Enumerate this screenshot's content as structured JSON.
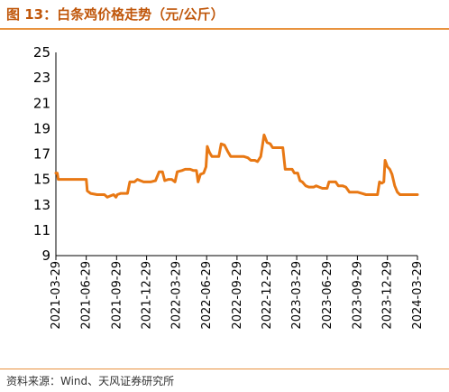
{
  "header": {
    "title": "图 13：白条鸡价格走势（元/公斤）"
  },
  "footer": {
    "source": "资料来源：Wind、天风证券研究所"
  },
  "colors": {
    "accent": "#e8923e",
    "title": "#c0570b",
    "line": "#e87814"
  },
  "chart_data": {
    "type": "line",
    "title": "图 13：白条鸡价格走势（元/公斤）",
    "xlabel": "",
    "ylabel": "",
    "ylim": [
      9,
      25
    ],
    "y_ticks": [
      9,
      11,
      13,
      15,
      17,
      19,
      21,
      23,
      25
    ],
    "x_range": [
      "2021-03-29",
      "2024-03-29"
    ],
    "x_ticks": [
      "2021-03-29",
      "2021-06-29",
      "2021-09-29",
      "2021-12-29",
      "2022-03-29",
      "2022-06-29",
      "2022-09-29",
      "2022-12-29",
      "2023-03-29",
      "2023-06-29",
      "2023-09-29",
      "2023-12-29",
      "2024-03-29"
    ],
    "grid": false,
    "legend": "none",
    "series": [
      {
        "color": "#e87814",
        "points": [
          [
            "2021-03-29",
            15.5
          ],
          [
            "2021-04-02",
            15.5
          ],
          [
            "2021-04-05",
            15.0
          ],
          [
            "2021-04-20",
            15.0
          ],
          [
            "2021-05-10",
            15.0
          ],
          [
            "2021-06-01",
            15.0
          ],
          [
            "2021-06-29",
            15.0
          ],
          [
            "2021-07-02",
            14.1
          ],
          [
            "2021-07-12",
            13.9
          ],
          [
            "2021-08-01",
            13.8
          ],
          [
            "2021-08-23",
            13.8
          ],
          [
            "2021-09-01",
            13.6
          ],
          [
            "2021-09-10",
            13.7
          ],
          [
            "2021-09-20",
            13.8
          ],
          [
            "2021-09-27",
            13.6
          ],
          [
            "2021-10-01",
            13.8
          ],
          [
            "2021-10-12",
            13.9
          ],
          [
            "2021-11-01",
            13.9
          ],
          [
            "2021-11-08",
            14.8
          ],
          [
            "2021-11-22",
            14.8
          ],
          [
            "2021-12-01",
            15.0
          ],
          [
            "2021-12-10",
            14.9
          ],
          [
            "2021-12-20",
            14.8
          ],
          [
            "2022-01-10",
            14.8
          ],
          [
            "2022-01-25",
            14.9
          ],
          [
            "2022-02-05",
            15.6
          ],
          [
            "2022-02-15",
            15.6
          ],
          [
            "2022-02-22",
            14.9
          ],
          [
            "2022-03-05",
            15.0
          ],
          [
            "2022-03-15",
            15.0
          ],
          [
            "2022-03-25",
            14.8
          ],
          [
            "2022-04-01",
            15.6
          ],
          [
            "2022-04-15",
            15.7
          ],
          [
            "2022-04-25",
            15.8
          ],
          [
            "2022-05-10",
            15.8
          ],
          [
            "2022-05-20",
            15.7
          ],
          [
            "2022-05-29",
            15.7
          ],
          [
            "2022-06-03",
            14.8
          ],
          [
            "2022-06-10",
            15.4
          ],
          [
            "2022-06-20",
            15.5
          ],
          [
            "2022-06-27",
            16.0
          ],
          [
            "2022-07-01",
            17.6
          ],
          [
            "2022-07-08",
            17.1
          ],
          [
            "2022-07-15",
            16.8
          ],
          [
            "2022-07-25",
            16.8
          ],
          [
            "2022-08-05",
            16.8
          ],
          [
            "2022-08-12",
            17.8
          ],
          [
            "2022-08-22",
            17.7
          ],
          [
            "2022-09-01",
            17.2
          ],
          [
            "2022-09-10",
            16.8
          ],
          [
            "2022-09-29",
            16.8
          ],
          [
            "2022-10-20",
            16.8
          ],
          [
            "2022-11-01",
            16.7
          ],
          [
            "2022-11-10",
            16.5
          ],
          [
            "2022-11-22",
            16.5
          ],
          [
            "2022-11-30",
            16.4
          ],
          [
            "2022-12-10",
            16.8
          ],
          [
            "2022-12-20",
            18.5
          ],
          [
            "2022-12-29",
            17.9
          ],
          [
            "2023-01-08",
            17.8
          ],
          [
            "2023-01-15",
            17.5
          ],
          [
            "2023-01-25",
            17.5
          ],
          [
            "2023-02-05",
            17.5
          ],
          [
            "2023-02-15",
            17.5
          ],
          [
            "2023-02-22",
            15.8
          ],
          [
            "2023-03-05",
            15.8
          ],
          [
            "2023-03-15",
            15.8
          ],
          [
            "2023-03-22",
            15.5
          ],
          [
            "2023-04-01",
            15.5
          ],
          [
            "2023-04-08",
            14.9
          ],
          [
            "2023-04-15",
            14.8
          ],
          [
            "2023-04-25",
            14.5
          ],
          [
            "2023-05-05",
            14.4
          ],
          [
            "2023-05-20",
            14.4
          ],
          [
            "2023-05-27",
            14.5
          ],
          [
            "2023-06-05",
            14.4
          ],
          [
            "2023-06-15",
            14.3
          ],
          [
            "2023-06-29",
            14.3
          ],
          [
            "2023-07-05",
            14.8
          ],
          [
            "2023-07-15",
            14.8
          ],
          [
            "2023-07-25",
            14.8
          ],
          [
            "2023-08-02",
            14.5
          ],
          [
            "2023-08-15",
            14.5
          ],
          [
            "2023-08-25",
            14.4
          ],
          [
            "2023-09-05",
            14.0
          ],
          [
            "2023-09-15",
            14.0
          ],
          [
            "2023-09-29",
            14.0
          ],
          [
            "2023-10-12",
            13.9
          ],
          [
            "2023-10-25",
            13.8
          ],
          [
            "2023-11-15",
            13.8
          ],
          [
            "2023-11-29",
            13.8
          ],
          [
            "2023-12-05",
            14.8
          ],
          [
            "2023-12-12",
            14.7
          ],
          [
            "2023-12-18",
            14.8
          ],
          [
            "2023-12-22",
            16.5
          ],
          [
            "2023-12-29",
            16.0
          ],
          [
            "2024-01-05",
            15.8
          ],
          [
            "2024-01-12",
            15.4
          ],
          [
            "2024-01-20",
            14.5
          ],
          [
            "2024-01-28",
            14.0
          ],
          [
            "2024-02-05",
            13.8
          ],
          [
            "2024-02-20",
            13.8
          ],
          [
            "2024-03-29",
            13.8
          ]
        ]
      }
    ]
  }
}
